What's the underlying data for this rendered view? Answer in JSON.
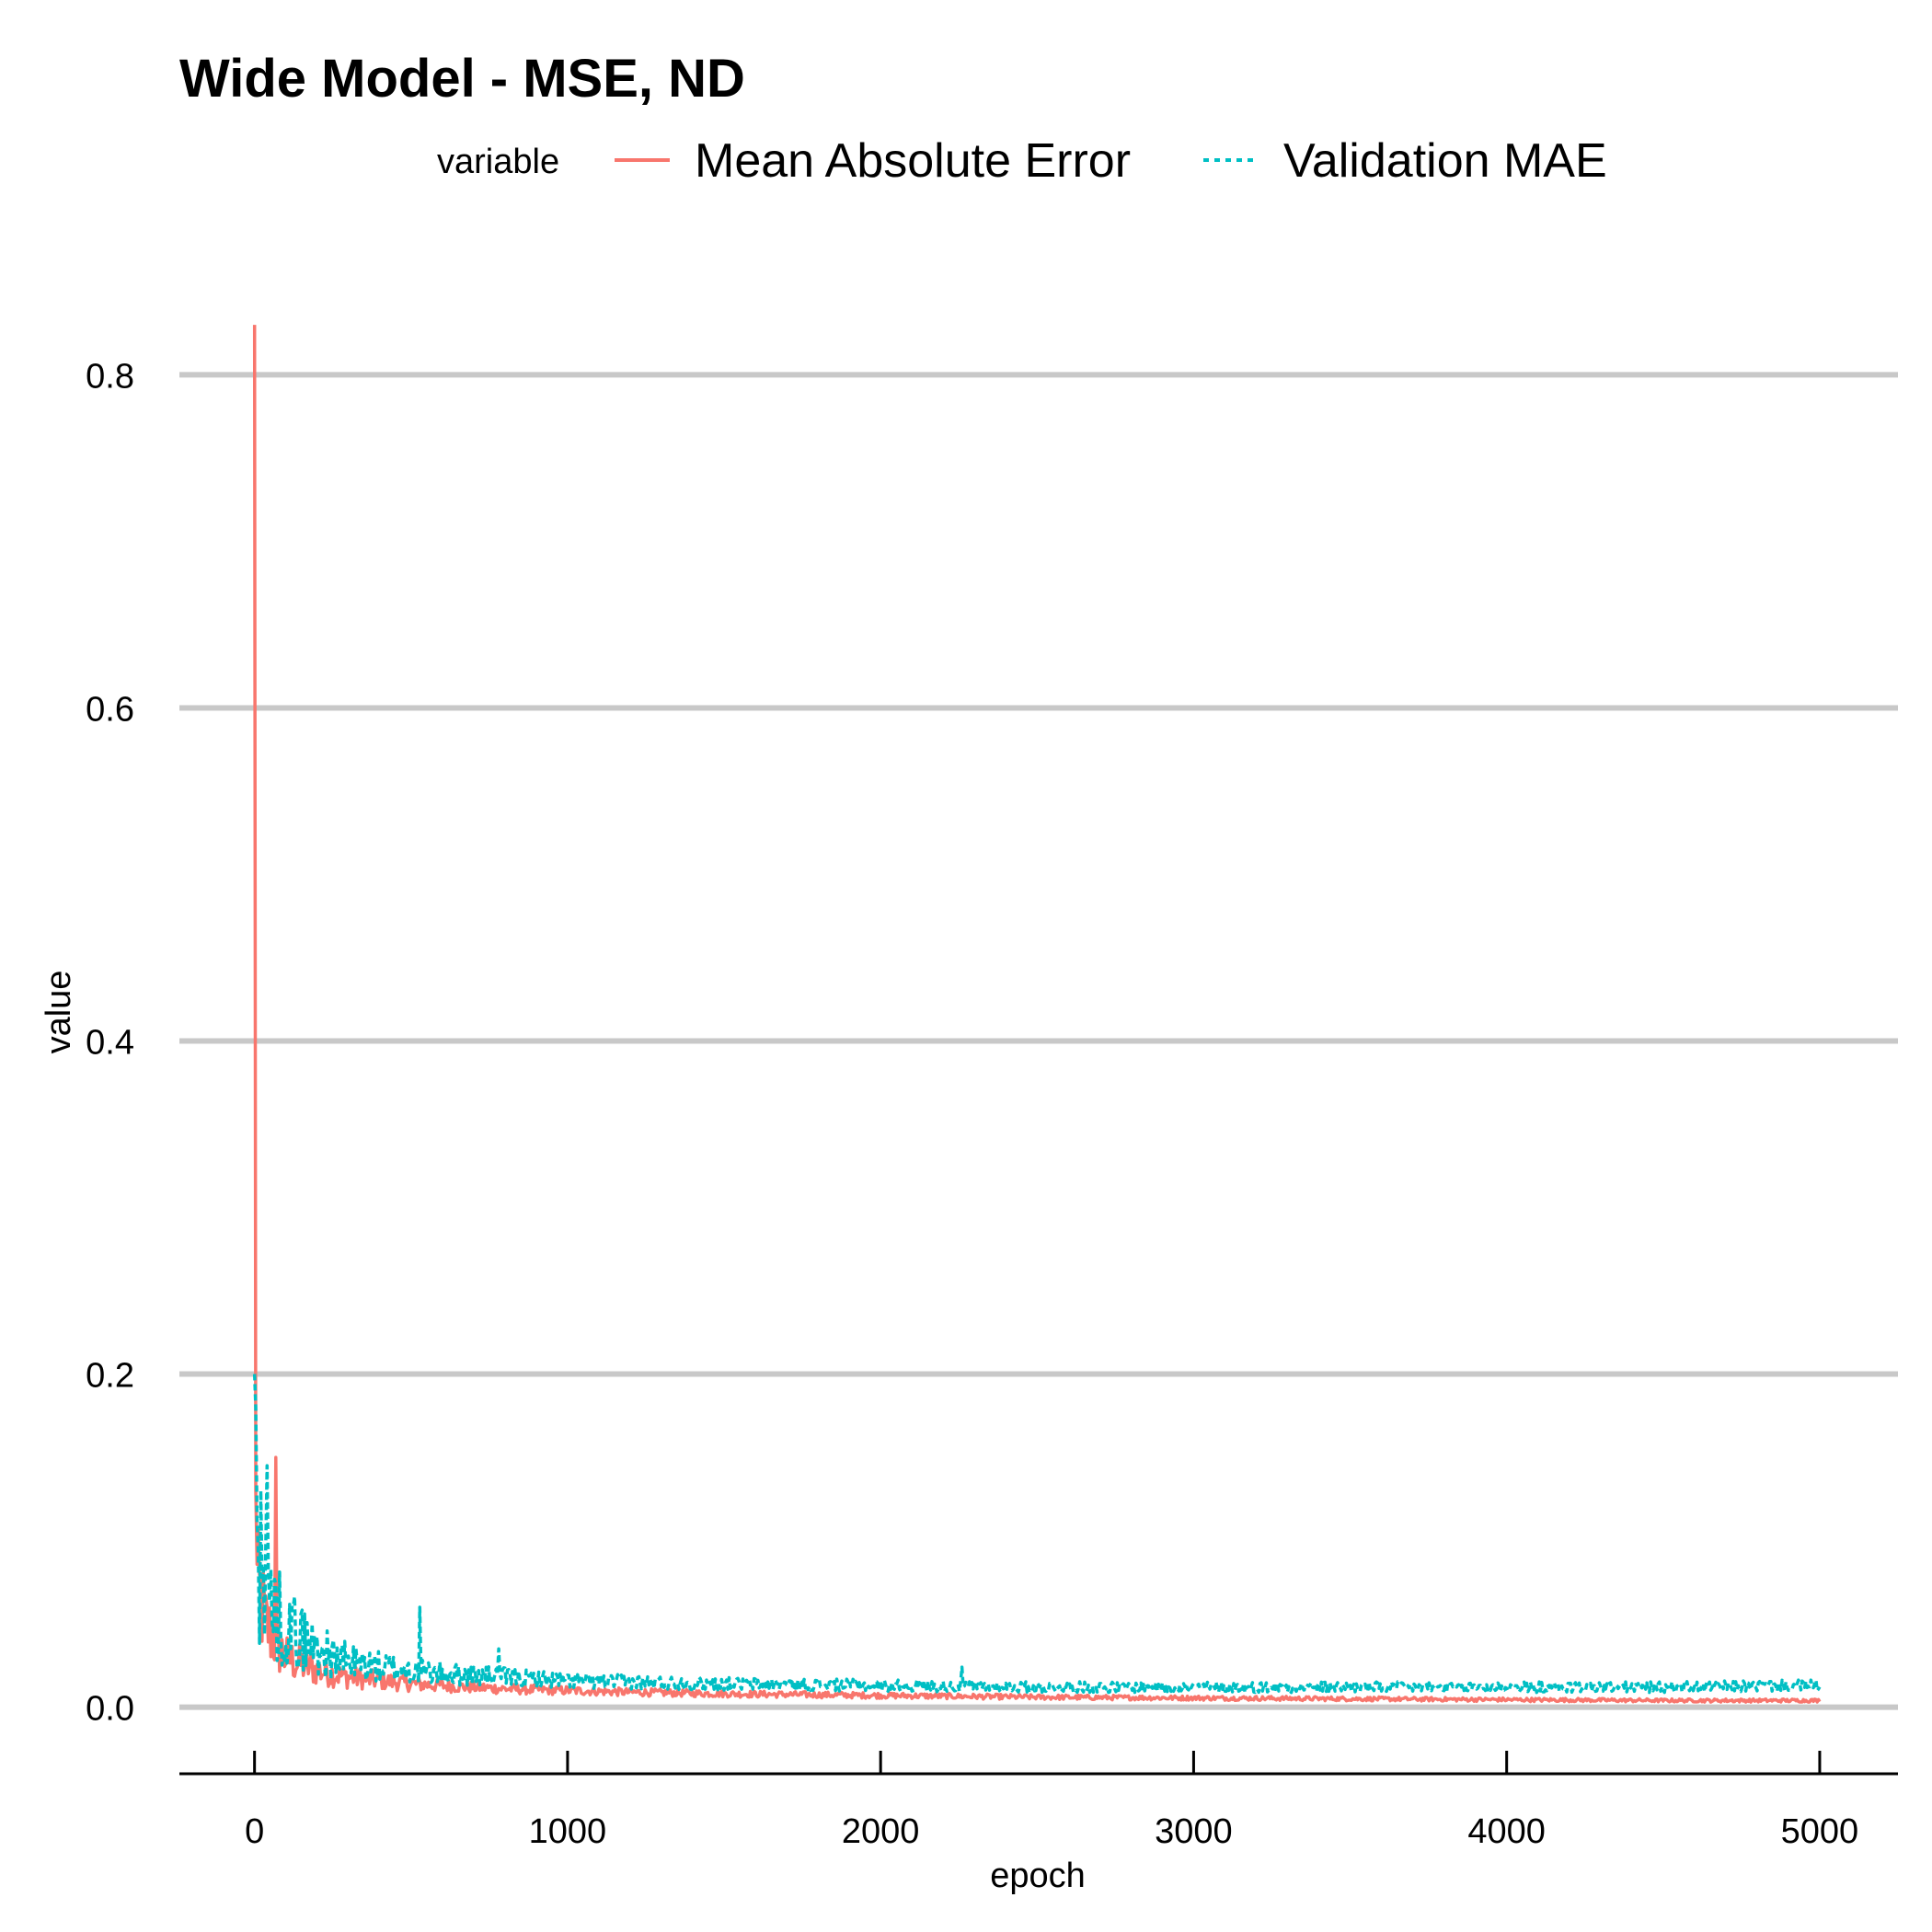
{
  "chart_data": {
    "type": "line",
    "title": "Wide Model - MSE, ND",
    "xlabel": "epoch",
    "ylabel": "value",
    "xlim": [
      -240,
      5250
    ],
    "ylim": [
      -0.04,
      0.84
    ],
    "x_ticks": [
      0,
      1000,
      2000,
      3000,
      4000,
      5000
    ],
    "x_tick_labels": [
      "0",
      "1000",
      "2000",
      "3000",
      "4000",
      "5000"
    ],
    "y_ticks": [
      0.0,
      0.2,
      0.4,
      0.6,
      0.8
    ],
    "y_tick_labels": [
      "0.0",
      "0.2",
      "0.4",
      "0.6",
      "0.8"
    ],
    "grid": "horizontal major",
    "legend": {
      "title": "variable",
      "position": "top",
      "entries": [
        "Mean Absolute Error",
        "Validation MAE"
      ]
    },
    "colors": {
      "mae": "#F8766D",
      "val": "#00BFC4",
      "grid": "#c8c8c8"
    },
    "series": [
      {
        "name": "Mean Absolute Error",
        "linetype": "solid",
        "x": [
          0,
          1,
          2,
          3,
          5,
          8,
          12,
          18,
          25,
          35,
          50,
          65,
          80,
          100,
          130,
          160,
          200,
          250,
          300,
          400,
          500,
          600,
          700,
          800,
          1000,
          1200,
          1500,
          2000,
          2500,
          3000,
          3500,
          4000,
          4500,
          5000
        ],
        "values": [
          0.83,
          0.2,
          0.14,
          0.11,
          0.09,
          0.075,
          0.07,
          0.065,
          0.06,
          0.05,
          0.045,
          0.04,
          0.035,
          0.03,
          0.027,
          0.025,
          0.022,
          0.02,
          0.018,
          0.016,
          0.014,
          0.013,
          0.012,
          0.011,
          0.01,
          0.009,
          0.008,
          0.007,
          0.006,
          0.0055,
          0.005,
          0.0045,
          0.004,
          0.004
        ]
      },
      {
        "name": "Validation MAE",
        "linetype": "dotted",
        "x": [
          0,
          2,
          5,
          10,
          20,
          30,
          50,
          70,
          100,
          130,
          160,
          200,
          250,
          300,
          400,
          500,
          600,
          700,
          800,
          1000,
          1200,
          1500,
          2000,
          2500,
          3000,
          3500,
          4000,
          4500,
          5000
        ],
        "values": [
          0.2,
          0.12,
          0.09,
          0.085,
          0.075,
          0.07,
          0.065,
          0.055,
          0.05,
          0.045,
          0.04,
          0.035,
          0.03,
          0.027,
          0.024,
          0.022,
          0.02,
          0.019,
          0.018,
          0.016,
          0.015,
          0.014,
          0.013,
          0.012,
          0.012,
          0.012,
          0.012,
          0.012,
          0.013
        ]
      }
    ]
  }
}
